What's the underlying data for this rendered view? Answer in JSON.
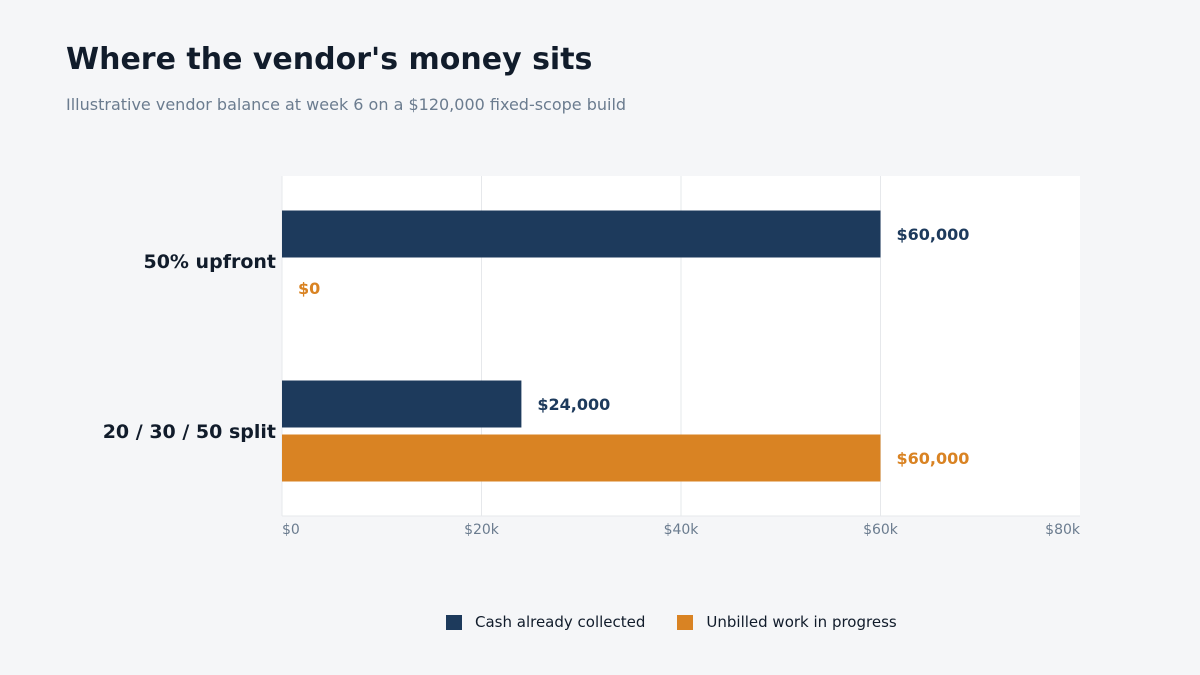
{
  "title": "Where the vendor's money sits",
  "subtitle": "Illustrative vendor balance at week 6 on a $120,000 fixed-scope build",
  "colors": {
    "collected": "#1d3a5c",
    "unbilled": "#d98323"
  },
  "chart_data": {
    "type": "bar",
    "orientation": "horizontal",
    "categories": [
      "50% upfront",
      "20 / 30 / 50 split"
    ],
    "series": [
      {
        "name": "Cash already collected",
        "values": [
          60000,
          24000
        ],
        "labels": [
          "$60,000",
          "$24,000"
        ]
      },
      {
        "name": "Unbilled work in progress",
        "values": [
          0,
          60000
        ],
        "labels": [
          "$0",
          "$60,000"
        ]
      }
    ],
    "xlim": [
      0,
      80000
    ],
    "xticks": [
      0,
      20000,
      40000,
      60000,
      80000
    ],
    "xtick_labels": [
      "$0",
      "$20k",
      "$40k",
      "$60k",
      "$80k"
    ],
    "grid": true,
    "legend": "bottom"
  }
}
